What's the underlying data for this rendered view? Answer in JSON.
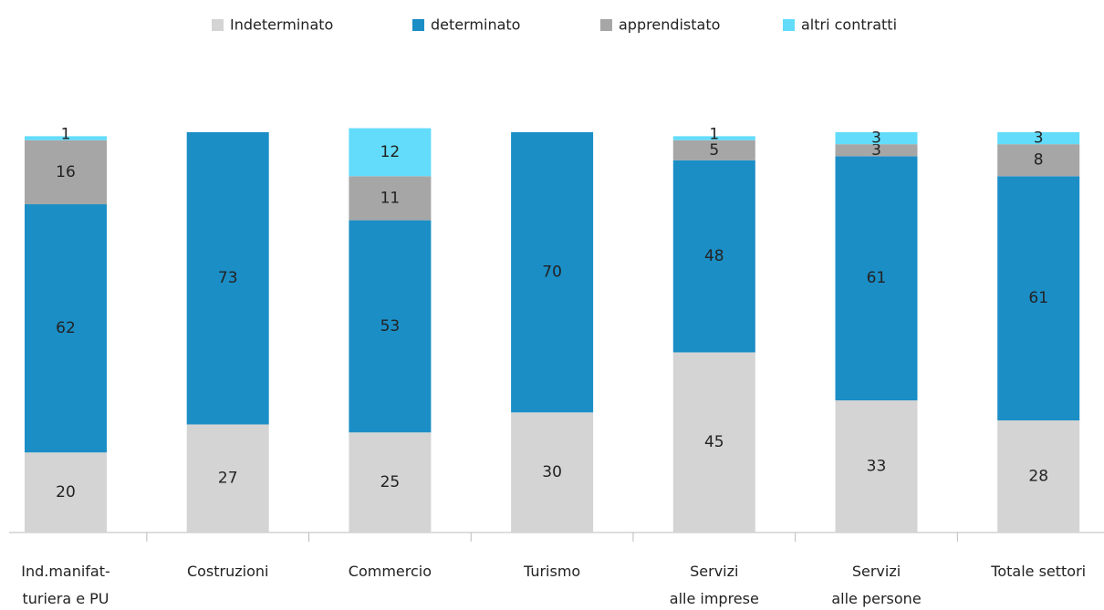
{
  "chart_data": {
    "type": "stacked_bar",
    "categories": [
      [
        "Ind.manifat-",
        "turiera e PU"
      ],
      [
        "Costruzioni"
      ],
      [
        "Commercio"
      ],
      [
        "Turismo"
      ],
      [
        "Servizi",
        "alle imprese"
      ],
      [
        "Servizi",
        "alle persone"
      ],
      [
        "Totale settori"
      ]
    ],
    "series": [
      {
        "name": "Indeterminato",
        "color": "#d4d4d4",
        "values": [
          20,
          27,
          25,
          30,
          45,
          33,
          28
        ]
      },
      {
        "name": "determinato",
        "color": "#1b8ec6",
        "values": [
          62,
          73,
          53,
          70,
          48,
          61,
          61
        ]
      },
      {
        "name": "apprendistato",
        "color": "#a6a6a6",
        "values": [
          16,
          null,
          11,
          null,
          5,
          3,
          8
        ]
      },
      {
        "name": "altri contratti",
        "color": "#62dcfa",
        "values": [
          1,
          null,
          12,
          null,
          1,
          3,
          3
        ]
      }
    ],
    "legend": "top"
  }
}
